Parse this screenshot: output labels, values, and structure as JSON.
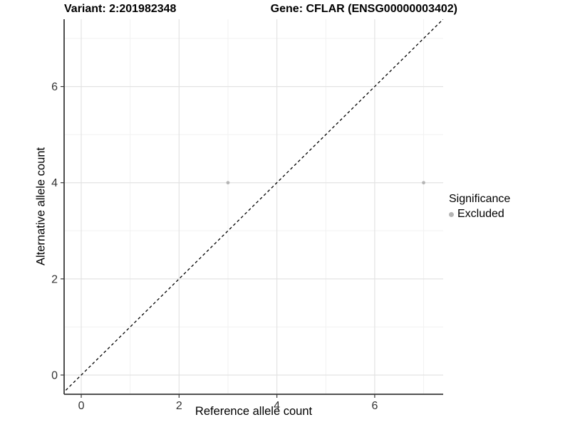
{
  "header": {
    "variant": "Variant: 2:201982348",
    "gene": "Gene: CFLAR (ENSG00000003402)"
  },
  "chart_data": {
    "type": "scatter",
    "title_left": "Variant: 2:201982348",
    "title_right": "Gene: CFLAR (ENSG00000003402)",
    "xlabel": "Reference allele count",
    "ylabel": "Alternative allele count",
    "xlim": [
      -0.35,
      7.4
    ],
    "ylim": [
      -0.4,
      7.4
    ],
    "xticks": [
      0,
      2,
      4,
      6
    ],
    "yticks": [
      0,
      2,
      4,
      6
    ],
    "xticks_minor": [
      1,
      3,
      5,
      7
    ],
    "yticks_minor": [
      1,
      3,
      5,
      7
    ],
    "grid": true,
    "series": [
      {
        "name": "Excluded",
        "color": "#b5b5b5",
        "points": [
          [
            3,
            4
          ],
          [
            7,
            4
          ]
        ]
      }
    ],
    "reference_line": {
      "type": "identity",
      "slope": 1,
      "intercept": 0,
      "style": "dashed",
      "color": "#000000"
    },
    "legend": {
      "title": "Significance",
      "position": "right",
      "entries": [
        {
          "label": "Excluded",
          "color": "#b5b5b5"
        }
      ]
    }
  },
  "colors": {
    "background": "#ffffff",
    "grid_major": "#e3e3e3",
    "grid_minor": "#f1f1f1",
    "axis_line": "#3a3a3a",
    "tick_label": "#333333",
    "point": "#b5b5b5",
    "reference_line": "#000000"
  }
}
